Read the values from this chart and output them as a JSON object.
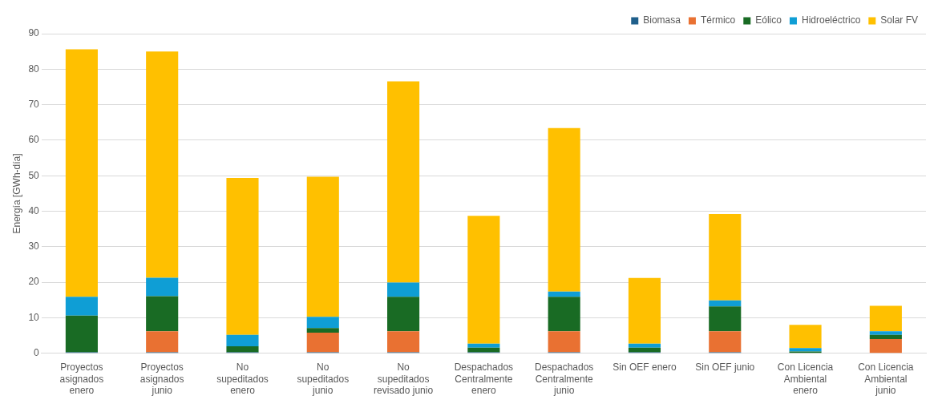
{
  "chart_data": {
    "type": "bar",
    "stacked": true,
    "ylabel": "Energía [GWh-día]",
    "categories": [
      "Proyectos asignados enero",
      "Proyectos asignados junio",
      "No supeditados enero",
      "No supeditados junio",
      "No supeditados revisado junio",
      "Despachados Centralmente enero",
      "Despachados Centralmente junio",
      "Sin OEF enero",
      "Sin OEF junio",
      "Con Licencia Ambiental enero",
      "Con Licencia Ambiental junio"
    ],
    "series": [
      {
        "name": "Biomasa",
        "color": "#1f5f8b",
        "values": [
          0.3,
          0.3,
          0.3,
          0.3,
          0.3,
          0.3,
          0.3,
          0.3,
          0.3,
          null,
          0
        ]
      },
      {
        "name": "Térmico",
        "color": "#e97132",
        "values": [
          0,
          5.9,
          0,
          5.5,
          5.9,
          0,
          5.9,
          0,
          5.9,
          0,
          4.0
        ]
      },
      {
        "name": "Eólico",
        "color": "#196b24",
        "values": [
          10.3,
          9.9,
          1.7,
          1.3,
          9.7,
          1.3,
          9.7,
          1.3,
          7.0,
          0.5,
          1.2
        ]
      },
      {
        "name": "Hidroeléctrico",
        "color": "#0f9ed5",
        "values": [
          5.3,
          5.2,
          3.2,
          3.2,
          4.0,
          1.1,
          1.5,
          1.1,
          1.7,
          1.0,
          1.0
        ]
      },
      {
        "name": "Solar FV",
        "color": "#ffc000",
        "values": [
          69.7,
          63.7,
          44.2,
          39.4,
          56.7,
          36.0,
          46.0,
          18.5,
          24.3,
          6.5,
          7.2
        ]
      }
    ],
    "ylim": [
      0,
      90
    ],
    "yticks": [
      0,
      10,
      20,
      30,
      40,
      50,
      60,
      70,
      80,
      90
    ],
    "grid": "y",
    "legend": "top right"
  }
}
